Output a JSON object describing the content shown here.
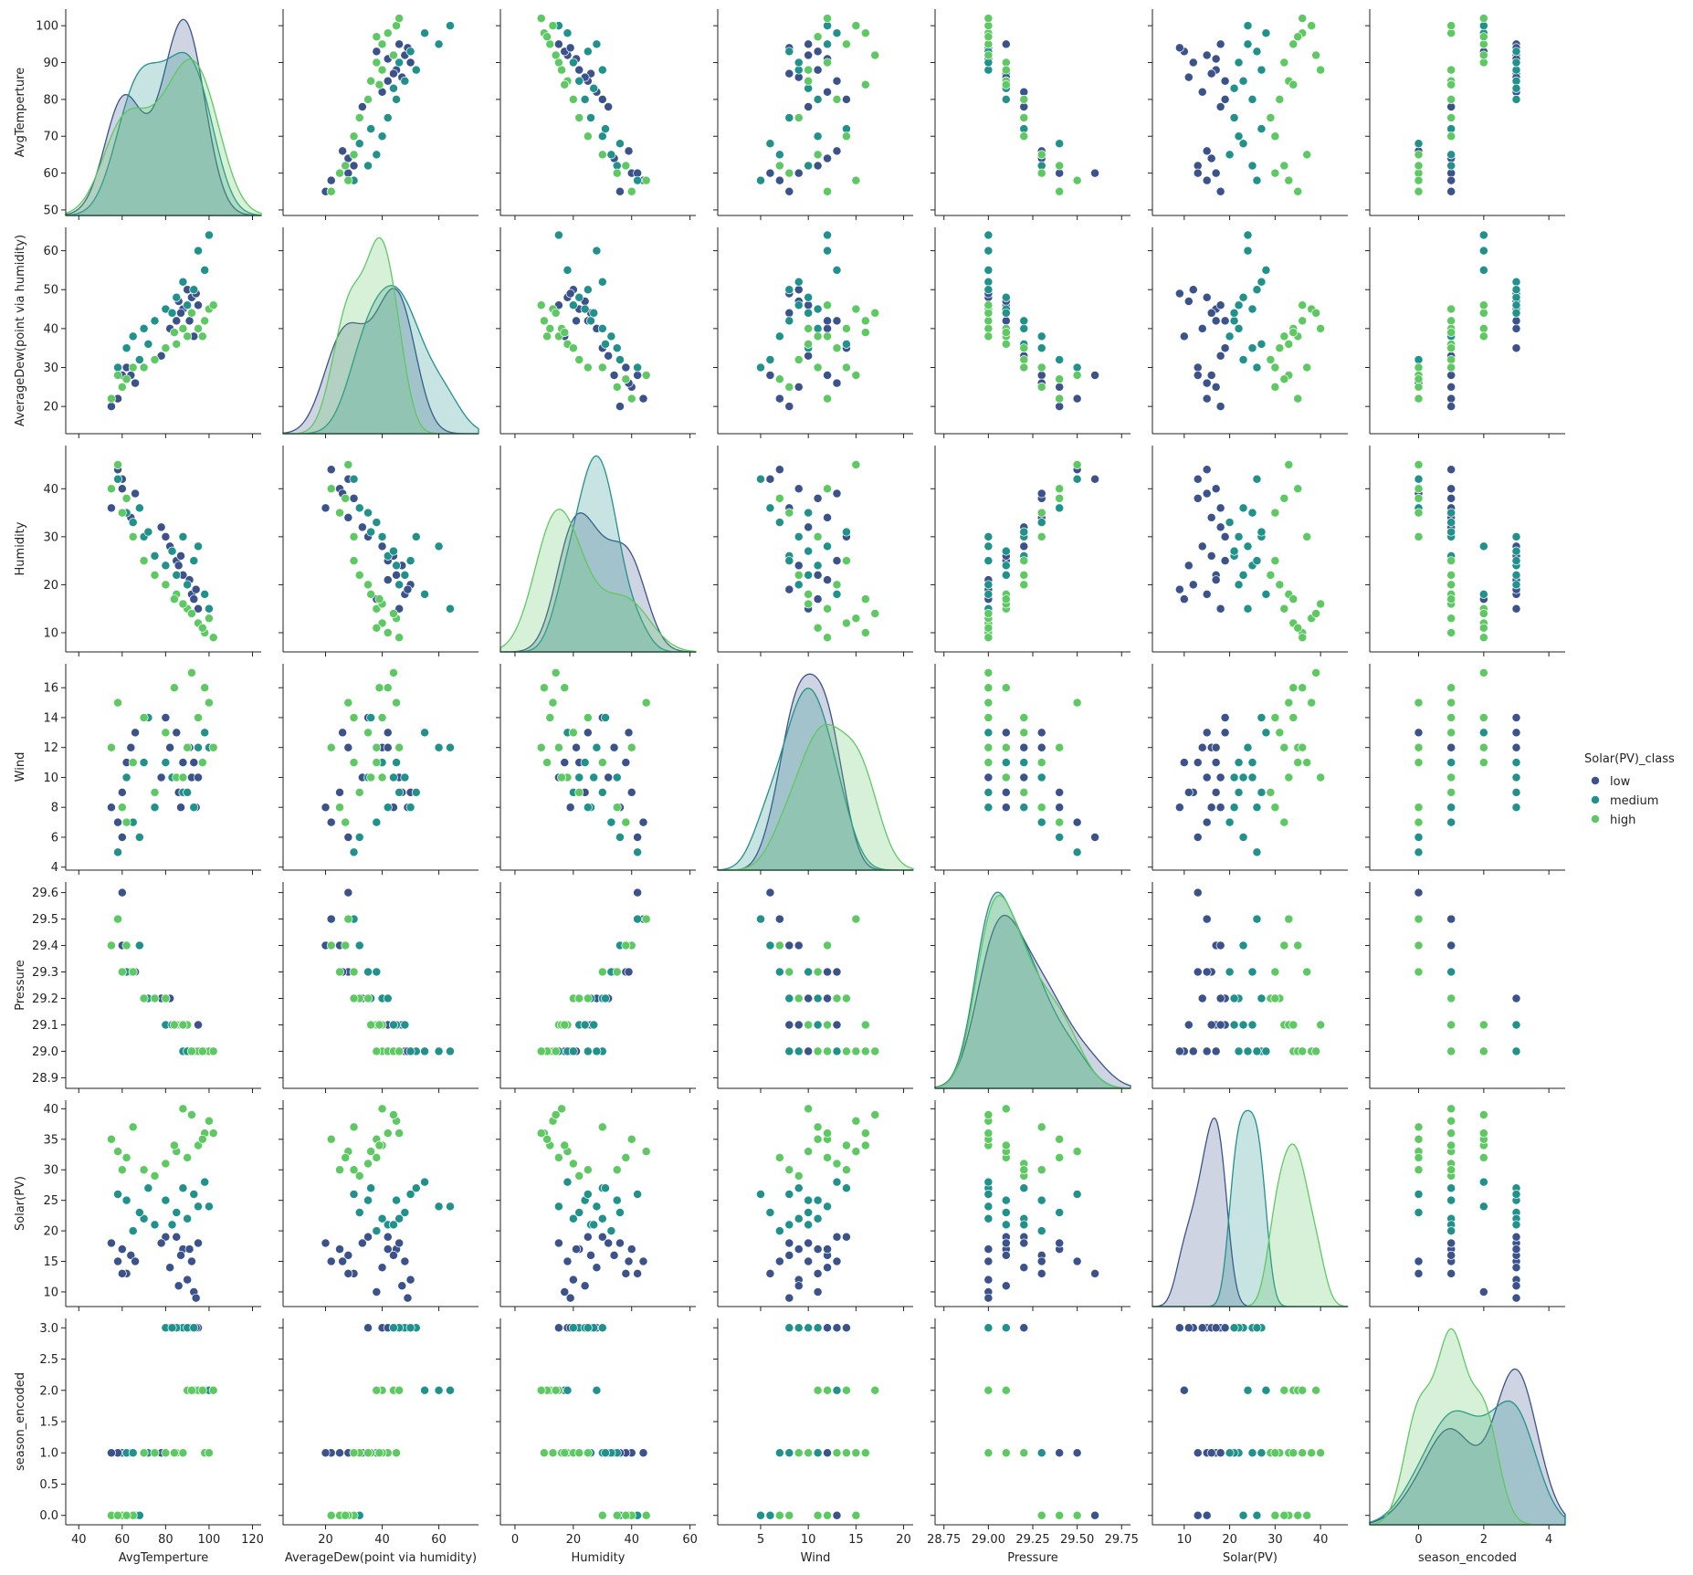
{
  "chart_data": {
    "type": "pairplot",
    "variables": [
      "AvgTemperture",
      "AverageDew(point via humidity)",
      "Humidity",
      "Wind",
      "Pressure",
      "Solar(PV)",
      "season_encoded"
    ],
    "axes": [
      {
        "xlim": [
          34,
          124
        ],
        "xticks": [
          40,
          60,
          80,
          100,
          120
        ],
        "ylim": [
          48.5,
          104.5
        ],
        "yticks": [
          50,
          60,
          70,
          80,
          90,
          100
        ]
      },
      {
        "xlim": [
          5,
          74
        ],
        "xticks": [
          20,
          40,
          60
        ],
        "ylim": [
          13,
          66
        ],
        "yticks": [
          20,
          30,
          40,
          50,
          60
        ]
      },
      {
        "xlim": [
          -5,
          62
        ],
        "xticks": [
          0,
          20,
          40,
          60
        ],
        "ylim": [
          6,
          49
        ],
        "yticks": [
          10,
          20,
          30,
          40
        ]
      },
      {
        "xlim": [
          0.5,
          21
        ],
        "xticks": [
          5,
          10,
          15,
          20
        ],
        "ylim": [
          3.8,
          17.6
        ],
        "yticks": [
          4,
          6,
          8,
          10,
          12,
          14,
          16
        ]
      },
      {
        "xlim": [
          28.7,
          29.8
        ],
        "xticks": [
          28.75,
          {
            "value": 29,
            "label": "29.00"
          },
          29.25,
          {
            "value": 29.5,
            "label": "29.50"
          },
          29.75
        ],
        "ylim": [
          28.86,
          29.64
        ],
        "yticks": [
          {
            "value": 28.9,
            "label": "28.9"
          },
          {
            "value": 29,
            "label": "29.0"
          },
          29.1,
          29.2,
          29.3,
          29.4,
          29.5,
          29.6
        ]
      },
      {
        "xlim": [
          3,
          46
        ],
        "xticks": [
          10,
          20,
          30,
          40
        ],
        "ylim": [
          7.6,
          41.4
        ],
        "yticks": [
          10,
          15,
          20,
          25,
          30,
          35,
          40
        ]
      },
      {
        "xlim": [
          -1.5,
          4.5
        ],
        "xticks": [
          0,
          2,
          4
        ],
        "ylim": [
          -0.15,
          3.15
        ],
        "yticks": [
          {
            "value": 0,
            "label": "0.0"
          },
          0.5,
          {
            "value": 1,
            "label": "1.0"
          },
          1.5,
          {
            "value": 2,
            "label": "2.0"
          },
          2.5,
          {
            "value": 3,
            "label": "3.0"
          }
        ]
      }
    ],
    "legend_title": "Solar(PV)_class",
    "series": [
      {
        "name": "low",
        "color": "#3b528b",
        "points": [
          [
            60,
            25,
            40,
            9,
            29.4,
            17,
            1
          ],
          [
            58,
            22,
            44,
            7,
            29.5,
            15,
            1
          ],
          [
            62,
            30,
            38,
            11,
            29.3,
            13,
            1
          ],
          [
            55,
            20,
            36,
            8,
            29.4,
            18,
            1
          ],
          [
            64,
            28,
            34,
            12,
            29.3,
            16,
            1
          ],
          [
            88,
            45,
            22,
            11,
            29.1,
            17,
            3
          ],
          [
            92,
            48,
            18,
            10,
            29.0,
            15,
            3
          ],
          [
            85,
            42,
            25,
            13,
            29.1,
            19,
            3
          ],
          [
            90,
            50,
            20,
            9,
            29.0,
            12,
            3
          ],
          [
            95,
            46,
            15,
            10,
            29.1,
            18,
            3
          ],
          [
            82,
            40,
            28,
            12,
            29.2,
            14,
            3
          ],
          [
            87,
            44,
            26,
            8,
            29.1,
            16,
            3
          ],
          [
            93,
            38,
            17,
            11,
            29.0,
            10,
            2
          ],
          [
            80,
            35,
            30,
            14,
            29.2,
            19,
            3
          ],
          [
            60,
            28,
            42,
            6,
            29.6,
            13,
            0
          ],
          [
            86,
            47,
            24,
            9,
            29.1,
            11,
            3
          ],
          [
            91,
            42,
            21,
            12,
            29.0,
            17,
            3
          ],
          [
            78,
            33,
            32,
            10,
            29.2,
            18,
            1
          ],
          [
            66,
            26,
            39,
            13,
            29.3,
            15,
            0
          ],
          [
            94,
            49,
            19,
            8,
            29.0,
            9,
            3
          ]
        ]
      },
      {
        "name": "medium",
        "color": "#21918c",
        "points": [
          [
            62,
            35,
            35,
            10,
            29.3,
            25,
            1
          ],
          [
            70,
            40,
            30,
            11,
            29.2,
            22,
            1
          ],
          [
            88,
            52,
            30,
            9,
            29.0,
            27,
            3
          ],
          [
            95,
            60,
            28,
            12,
            29.0,
            24,
            2
          ],
          [
            75,
            42,
            26,
            8,
            29.2,
            21,
            1
          ],
          [
            58,
            30,
            42,
            5,
            29.5,
            26,
            0
          ],
          [
            85,
            48,
            22,
            10,
            29.1,
            23,
            3
          ],
          [
            98,
            55,
            18,
            13,
            29.0,
            28,
            2
          ],
          [
            65,
            38,
            33,
            7,
            29.3,
            20,
            1
          ],
          [
            80,
            45,
            24,
            11,
            29.1,
            25,
            3
          ],
          [
            90,
            46,
            20,
            9,
            29.0,
            22,
            3
          ],
          [
            72,
            36,
            31,
            14,
            29.2,
            27,
            1
          ],
          [
            100,
            64,
            15,
            12,
            29.0,
            24,
            2
          ],
          [
            68,
            32,
            36,
            6,
            29.4,
            23,
            0
          ],
          [
            83,
            44,
            27,
            10,
            29.1,
            21,
            3
          ],
          [
            93,
            50,
            25,
            8,
            29.0,
            26,
            3
          ]
        ]
      },
      {
        "name": "high",
        "color": "#5ec962",
        "points": [
          [
            95,
            40,
            12,
            14,
            29.0,
            34,
            2
          ],
          [
            98,
            42,
            10,
            16,
            29.0,
            36,
            1
          ],
          [
            90,
            38,
            15,
            12,
            29.1,
            32,
            2
          ],
          [
            100,
            45,
            13,
            15,
            29.0,
            38,
            1
          ],
          [
            85,
            36,
            18,
            10,
            29.1,
            33,
            1
          ],
          [
            60,
            25,
            35,
            8,
            29.3,
            30,
            0
          ],
          [
            55,
            22,
            40,
            12,
            29.4,
            35,
            0
          ],
          [
            65,
            30,
            30,
            11,
            29.3,
            37,
            0
          ],
          [
            80,
            35,
            20,
            13,
            29.2,
            31,
            1
          ],
          [
            92,
            44,
            14,
            17,
            29.0,
            39,
            2
          ],
          [
            75,
            32,
            22,
            9,
            29.2,
            29,
            1
          ],
          [
            97,
            38,
            11,
            11,
            29.0,
            35,
            2
          ],
          [
            58,
            28,
            45,
            15,
            29.5,
            33,
            0
          ],
          [
            88,
            40,
            16,
            10,
            29.1,
            40,
            1
          ],
          [
            70,
            30,
            25,
            14,
            29.2,
            30,
            1
          ],
          [
            102,
            46,
            9,
            12,
            29.0,
            36,
            2
          ],
          [
            62,
            27,
            38,
            7,
            29.4,
            32,
            0
          ],
          [
            84,
            39,
            17,
            16,
            29.1,
            34,
            1
          ]
        ]
      }
    ]
  }
}
